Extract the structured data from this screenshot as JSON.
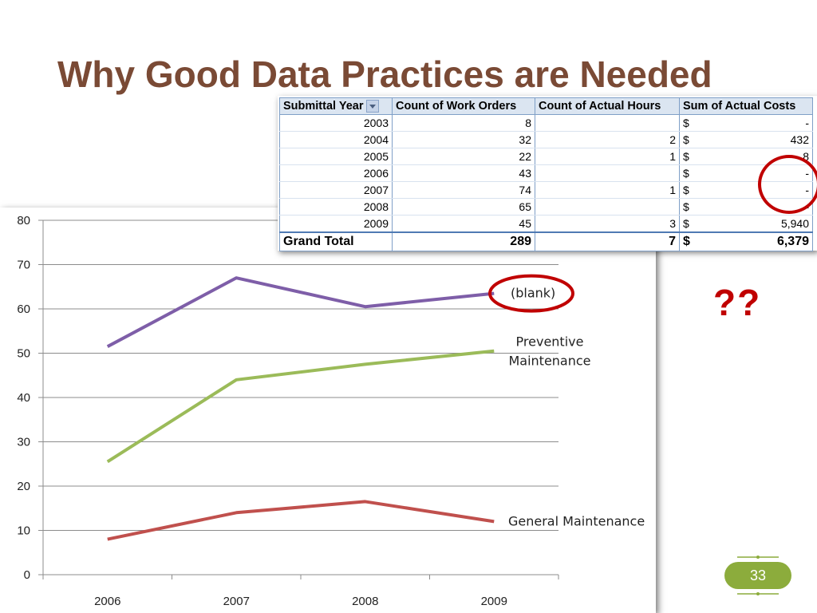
{
  "slide": {
    "title": "Why Good Data Practices are Needed",
    "annotation": "??",
    "page_number": "33"
  },
  "pivot": {
    "headers": [
      "Submittal Year",
      "Count of Work Orders",
      "Count of Actual Hours",
      "Sum of Actual Costs"
    ],
    "rows": [
      {
        "year": "2003",
        "work_orders": "8",
        "hours": "",
        "currency": "$",
        "costs": "-"
      },
      {
        "year": "2004",
        "work_orders": "32",
        "hours": "2",
        "currency": "$",
        "costs": "432"
      },
      {
        "year": "2005",
        "work_orders": "22",
        "hours": "1",
        "currency": "$",
        "costs": "8"
      },
      {
        "year": "2006",
        "work_orders": "43",
        "hours": "",
        "currency": "$",
        "costs": "-"
      },
      {
        "year": "2007",
        "work_orders": "74",
        "hours": "1",
        "currency": "$",
        "costs": "-"
      },
      {
        "year": "2008",
        "work_orders": "65",
        "hours": "",
        "currency": "$",
        "costs": "-"
      },
      {
        "year": "2009",
        "work_orders": "45",
        "hours": "3",
        "currency": "$",
        "costs": "5,940"
      }
    ],
    "total": {
      "label": "Grand Total",
      "work_orders": "289",
      "hours": "7",
      "currency": "$",
      "costs": "6,379"
    }
  },
  "chart_data": {
    "type": "line",
    "x": [
      "2006",
      "2007",
      "2008",
      "2009"
    ],
    "ylim": [
      0,
      80
    ],
    "yticks": [
      0,
      10,
      20,
      30,
      40,
      50,
      60,
      70,
      80
    ],
    "grid": true,
    "series": [
      {
        "name": "(blank)",
        "values": [
          51.5,
          67,
          60.5,
          63.5
        ],
        "color": "#7e5ea8"
      },
      {
        "name": "Preventive Maintenance",
        "label_lines": [
          "Preventive",
          "Maintenance"
        ],
        "values": [
          25.5,
          44,
          47.5,
          50.5
        ],
        "color": "#9bbb59"
      },
      {
        "name": "General Maintenance",
        "values": [
          8,
          14,
          16.5,
          12
        ],
        "color": "#c0504d"
      }
    ]
  },
  "colors": {
    "title": "#7a4a35",
    "highlight_circle": "#c00000",
    "badge": "#8cac3c"
  }
}
